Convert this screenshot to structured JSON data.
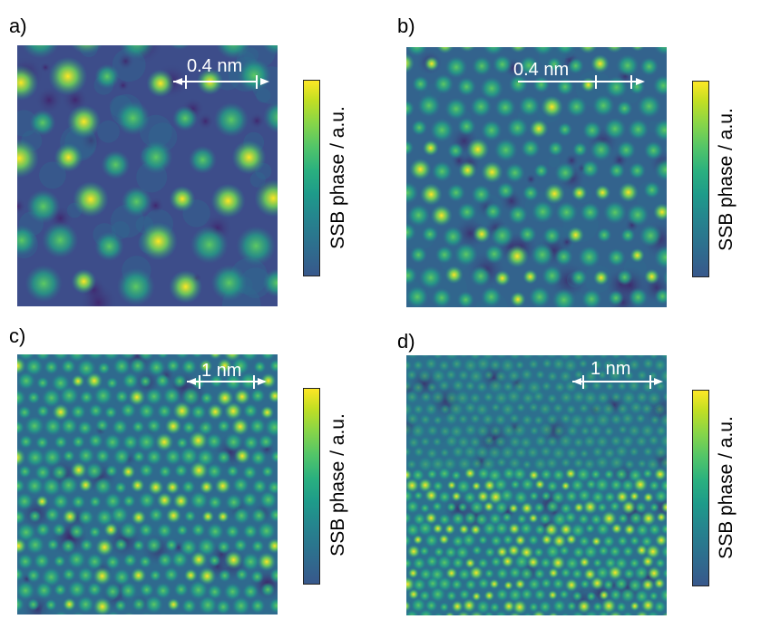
{
  "panels": [
    {
      "label": "a)",
      "scale_label": "0.4 nm",
      "colorbar_label": "SSB phase / a.u."
    },
    {
      "label": "b)",
      "scale_label": "0.4 nm",
      "colorbar_label": "SSB phase / a.u."
    },
    {
      "label": "c)",
      "scale_label": "1 nm",
      "colorbar_label": "SSB phase / a.u."
    },
    {
      "label": "d)",
      "scale_label": "1 nm",
      "colorbar_label": "SSB phase / a.u."
    }
  ],
  "colors": {
    "colormap": "viridis",
    "background_a": "#3a4f8a",
    "background_b": "#32648e",
    "highlight": "#fde725",
    "mid": "#35b779"
  }
}
